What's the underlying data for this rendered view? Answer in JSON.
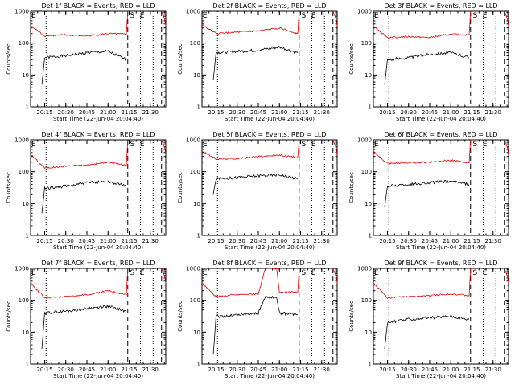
{
  "axis_common": {
    "ylabel": "Counts/sec",
    "xlabel": "Start Time (22-Jun-04 20:04:40)",
    "x_ticks": [
      "20:15",
      "20:30",
      "20:45",
      "21:00",
      "21:15",
      "21:30"
    ],
    "y_ticks": [
      "1",
      "10",
      "100",
      "1000"
    ]
  },
  "chart_data": [
    {
      "type": "line",
      "title": "Det 1f BLACK = Events, RED = LLD",
      "y_scale": "log",
      "ylim": [
        1,
        1000
      ],
      "xlim": [
        "20:05",
        "21:41"
      ],
      "markers": {
        "vertical_dotted": [
          "20:16",
          "21:23",
          "21:32"
        ],
        "vertical_dashed": [
          "21:14",
          "21:38"
        ],
        "letters": [
          {
            "x": "20:05",
            "text": "E"
          },
          {
            "x": "21:15",
            "text": "S"
          },
          {
            "x": "21:22",
            "text": "E"
          }
        ]
      },
      "series": [
        {
          "name": "Events",
          "color": "#000000",
          "t": [
            "20:13",
            "20:15",
            "20:30",
            "20:45",
            "21:00",
            "21:13"
          ],
          "values": [
            5,
            35,
            40,
            50,
            55,
            30
          ]
        },
        {
          "name": "LLD",
          "color": "#e00000",
          "t": [
            "20:05",
            "20:15",
            "20:30",
            "20:45",
            "21:00",
            "21:13",
            "21:14"
          ],
          "values": [
            350,
            170,
            180,
            170,
            200,
            190,
            1000
          ]
        }
      ]
    },
    {
      "type": "line",
      "title": "Det 2f BLACK = Events, RED = LLD",
      "y_scale": "log",
      "ylim": [
        1,
        1000
      ],
      "xlim": [
        "20:05",
        "21:41"
      ],
      "markers": {
        "vertical_dotted": [
          "20:16",
          "21:23",
          "21:32"
        ],
        "vertical_dashed": [
          "21:14",
          "21:38"
        ],
        "letters": [
          {
            "x": "20:05",
            "text": "E"
          },
          {
            "x": "21:15",
            "text": "S"
          },
          {
            "x": "21:22",
            "text": "E"
          }
        ]
      },
      "series": [
        {
          "name": "Events",
          "color": "#000000",
          "t": [
            "20:13",
            "20:15",
            "20:30",
            "20:45",
            "21:00",
            "21:13"
          ],
          "values": [
            7,
            50,
            55,
            60,
            75,
            50
          ]
        },
        {
          "name": "LLD",
          "color": "#e00000",
          "t": [
            "20:05",
            "20:15",
            "20:30",
            "20:45",
            "21:00",
            "21:13",
            "21:14"
          ],
          "values": [
            380,
            200,
            220,
            240,
            300,
            200,
            1000
          ]
        }
      ]
    },
    {
      "type": "line",
      "title": "Det 3f BLACK = Events, RED = LLD",
      "y_scale": "log",
      "ylim": [
        1,
        1000
      ],
      "xlim": [
        "20:05",
        "21:41"
      ],
      "markers": {
        "vertical_dotted": [
          "20:16",
          "21:23",
          "21:32"
        ],
        "vertical_dashed": [
          "21:14",
          "21:38"
        ],
        "letters": [
          {
            "x": "20:05",
            "text": "E"
          },
          {
            "x": "21:15",
            "text": "S"
          },
          {
            "x": "21:22",
            "text": "E"
          }
        ]
      },
      "series": [
        {
          "name": "Events",
          "color": "#000000",
          "t": [
            "20:13",
            "20:15",
            "20:30",
            "20:45",
            "21:00",
            "21:13"
          ],
          "values": [
            5,
            30,
            35,
            45,
            50,
            35
          ]
        },
        {
          "name": "LLD",
          "color": "#e00000",
          "t": [
            "20:05",
            "20:15",
            "20:30",
            "20:45",
            "21:00",
            "21:13",
            "21:14"
          ],
          "values": [
            350,
            150,
            160,
            150,
            190,
            180,
            1000
          ]
        }
      ]
    },
    {
      "type": "line",
      "title": "Det 4f BLACK = Events, RED = LLD",
      "y_scale": "log",
      "ylim": [
        1,
        1000
      ],
      "xlim": [
        "20:05",
        "21:41"
      ],
      "markers": {
        "vertical_dotted": [
          "20:16",
          "21:23",
          "21:32"
        ],
        "vertical_dashed": [
          "21:14",
          "21:38"
        ],
        "letters": [
          {
            "x": "20:05",
            "text": "E"
          },
          {
            "x": "21:15",
            "text": "S"
          },
          {
            "x": "21:22",
            "text": "E"
          }
        ]
      },
      "series": [
        {
          "name": "Events",
          "color": "#000000",
          "t": [
            "20:13",
            "20:15",
            "20:30",
            "20:45",
            "21:00",
            "21:13"
          ],
          "values": [
            5,
            30,
            35,
            45,
            50,
            35
          ]
        },
        {
          "name": "LLD",
          "color": "#e00000",
          "t": [
            "20:05",
            "20:15",
            "20:30",
            "20:45",
            "21:00",
            "21:13",
            "21:14"
          ],
          "values": [
            350,
            130,
            150,
            160,
            200,
            160,
            1000
          ]
        }
      ]
    },
    {
      "type": "line",
      "title": "Det 5f BLACK = Events, RED = LLD",
      "y_scale": "log",
      "ylim": [
        1,
        1000
      ],
      "xlim": [
        "20:05",
        "21:41"
      ],
      "markers": {
        "vertical_dotted": [
          "20:16",
          "21:23",
          "21:32"
        ],
        "vertical_dashed": [
          "21:14",
          "21:38"
        ],
        "letters": [
          {
            "x": "20:05",
            "text": "E"
          },
          {
            "x": "21:15",
            "text": "S"
          },
          {
            "x": "21:22",
            "text": "E"
          }
        ]
      },
      "series": [
        {
          "name": "Events",
          "color": "#000000",
          "t": [
            "20:13",
            "20:15",
            "20:30",
            "20:45",
            "21:00",
            "21:13"
          ],
          "values": [
            20,
            60,
            65,
            75,
            80,
            60
          ]
        },
        {
          "name": "LLD",
          "color": "#e00000",
          "t": [
            "20:05",
            "20:15",
            "20:30",
            "20:45",
            "21:00",
            "21:13",
            "21:14"
          ],
          "values": [
            450,
            250,
            260,
            300,
            330,
            280,
            1000
          ]
        }
      ]
    },
    {
      "type": "line",
      "title": "Det 6f BLACK = Events, RED = LLD",
      "y_scale": "log",
      "ylim": [
        1,
        1000
      ],
      "xlim": [
        "20:05",
        "21:41"
      ],
      "markers": {
        "vertical_dotted": [
          "20:16",
          "21:23",
          "21:32"
        ],
        "vertical_dashed": [
          "21:14",
          "21:38"
        ],
        "letters": [
          {
            "x": "20:05",
            "text": "E"
          },
          {
            "x": "21:15",
            "text": "S"
          },
          {
            "x": "21:22",
            "text": "E"
          }
        ]
      },
      "series": [
        {
          "name": "Events",
          "color": "#000000",
          "t": [
            "20:13",
            "20:15",
            "20:30",
            "20:45",
            "21:00",
            "21:13"
          ],
          "values": [
            8,
            35,
            40,
            45,
            50,
            40
          ]
        },
        {
          "name": "LLD",
          "color": "#e00000",
          "t": [
            "20:05",
            "20:15",
            "20:30",
            "20:45",
            "21:00",
            "21:13",
            "21:14"
          ],
          "values": [
            420,
            180,
            190,
            200,
            230,
            190,
            1000
          ]
        }
      ]
    },
    {
      "type": "line",
      "title": "Det 7f BLACK = Events, RED = LLD",
      "y_scale": "log",
      "ylim": [
        1,
        1000
      ],
      "xlim": [
        "20:05",
        "21:41"
      ],
      "markers": {
        "vertical_dotted": [
          "20:16",
          "21:23",
          "21:32"
        ],
        "vertical_dashed": [
          "21:14",
          "21:38"
        ],
        "letters": [
          {
            "x": "20:05",
            "text": "E"
          },
          {
            "x": "21:15",
            "text": "S"
          },
          {
            "x": "21:22",
            "text": "E"
          }
        ]
      },
      "series": [
        {
          "name": "Events",
          "color": "#000000",
          "t": [
            "20:13",
            "20:15",
            "20:30",
            "20:45",
            "21:00",
            "21:13"
          ],
          "values": [
            3,
            40,
            45,
            55,
            65,
            45
          ]
        },
        {
          "name": "LLD",
          "color": "#e00000",
          "t": [
            "20:05",
            "20:15",
            "20:30",
            "20:45",
            "21:00",
            "21:13",
            "21:14"
          ],
          "values": [
            350,
            120,
            130,
            150,
            200,
            150,
            1000
          ]
        }
      ]
    },
    {
      "type": "line",
      "title": "Det 8f BLACK = Events, RED = LLD",
      "y_scale": "log",
      "ylim": [
        1,
        1000
      ],
      "xlim": [
        "20:05",
        "21:41"
      ],
      "markers": {
        "vertical_dotted": [
          "20:16",
          "21:23",
          "21:32"
        ],
        "vertical_dashed": [
          "21:14",
          "21:38"
        ],
        "letters": [
          {
            "x": "20:05",
            "text": "E"
          },
          {
            "x": "21:15",
            "text": "S"
          },
          {
            "x": "21:22",
            "text": "E"
          }
        ]
      },
      "series": [
        {
          "name": "Events",
          "color": "#000000",
          "t": [
            "20:13",
            "20:15",
            "20:30",
            "20:45",
            "20:50",
            "20:58",
            "21:00",
            "21:13"
          ],
          "values": [
            2,
            30,
            35,
            40,
            130,
            120,
            40,
            35
          ]
        },
        {
          "name": "LLD",
          "color": "#e00000",
          "t": [
            "20:05",
            "20:15",
            "20:30",
            "20:45",
            "20:50",
            "20:58",
            "21:00",
            "21:13",
            "21:14"
          ],
          "values": [
            350,
            130,
            150,
            160,
            1000,
            1000,
            180,
            180,
            1000
          ]
        }
      ]
    },
    {
      "type": "line",
      "title": "Det 9f BLACK = Events, RED = LLD",
      "y_scale": "log",
      "ylim": [
        1,
        1000
      ],
      "xlim": [
        "20:05",
        "21:41"
      ],
      "markers": {
        "vertical_dotted": [
          "20:16",
          "21:23",
          "21:32"
        ],
        "vertical_dashed": [
          "21:14",
          "21:38"
        ],
        "letters": [
          {
            "x": "20:05",
            "text": "E"
          },
          {
            "x": "21:15",
            "text": "S"
          },
          {
            "x": "21:22",
            "text": "E"
          }
        ]
      },
      "series": [
        {
          "name": "Events",
          "color": "#000000",
          "t": [
            "20:13",
            "20:15",
            "20:30",
            "20:45",
            "21:00",
            "21:13"
          ],
          "values": [
            3,
            20,
            25,
            28,
            32,
            25
          ]
        },
        {
          "name": "LLD",
          "color": "#e00000",
          "t": [
            "20:05",
            "20:15",
            "20:30",
            "20:45",
            "21:00",
            "21:13",
            "21:14"
          ],
          "values": [
            350,
            120,
            130,
            140,
            160,
            140,
            1000
          ]
        }
      ]
    }
  ]
}
